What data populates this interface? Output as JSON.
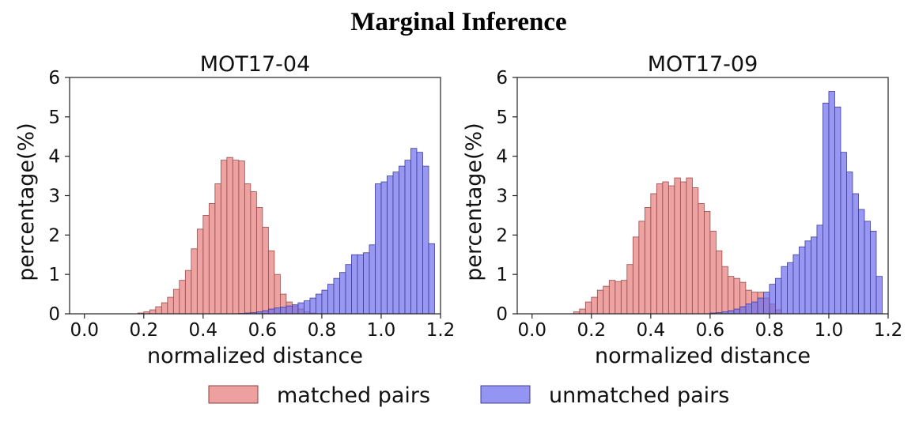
{
  "figure_title": "Marginal Inference",
  "chart_data": [
    {
      "type": "bar",
      "title": "MOT17-04",
      "xlabel": "normalized distance",
      "ylabel": "percentage(%)",
      "xlim": [
        -0.05,
        1.2
      ],
      "ylim": [
        0,
        6
      ],
      "xticks": [
        "0.0",
        "0.2",
        "0.4",
        "0.6",
        "0.8",
        "1.0",
        "1.2"
      ],
      "yticks": [
        "0",
        "1",
        "2",
        "3",
        "4",
        "5",
        "6"
      ],
      "bin_width": 0.02,
      "series": [
        {
          "name": "matched pairs",
          "color": "#e88080",
          "x": [
            0.19,
            0.21,
            0.23,
            0.25,
            0.27,
            0.29,
            0.31,
            0.33,
            0.35,
            0.37,
            0.39,
            0.41,
            0.43,
            0.45,
            0.47,
            0.49,
            0.51,
            0.53,
            0.55,
            0.57,
            0.59,
            0.61,
            0.63,
            0.65,
            0.67,
            0.69,
            0.71,
            0.73,
            0.75,
            0.77
          ],
          "values": [
            0.02,
            0.05,
            0.1,
            0.18,
            0.28,
            0.42,
            0.62,
            0.85,
            1.1,
            1.65,
            2.15,
            2.5,
            2.8,
            3.3,
            3.9,
            3.97,
            3.9,
            3.88,
            3.3,
            3.1,
            2.7,
            2.2,
            1.6,
            1.0,
            0.5,
            0.3,
            0.2,
            0.12,
            0.05,
            0.02
          ]
        },
        {
          "name": "unmatched pairs",
          "color": "#7070ee",
          "x": [
            0.53,
            0.55,
            0.57,
            0.59,
            0.61,
            0.63,
            0.65,
            0.67,
            0.69,
            0.71,
            0.73,
            0.75,
            0.77,
            0.79,
            0.81,
            0.83,
            0.85,
            0.87,
            0.89,
            0.91,
            0.93,
            0.95,
            0.97,
            0.99,
            1.01,
            1.03,
            1.05,
            1.07,
            1.09,
            1.11,
            1.13,
            1.15,
            1.17
          ],
          "values": [
            0.01,
            0.02,
            0.03,
            0.05,
            0.08,
            0.12,
            0.15,
            0.17,
            0.2,
            0.23,
            0.28,
            0.33,
            0.4,
            0.5,
            0.6,
            0.75,
            0.9,
            1.05,
            1.25,
            1.5,
            1.5,
            1.55,
            1.75,
            3.3,
            3.35,
            3.5,
            3.6,
            3.75,
            3.9,
            4.2,
            4.1,
            3.75,
            1.78
          ]
        }
      ]
    },
    {
      "type": "bar",
      "title": "MOT17-09",
      "xlabel": "normalized distance",
      "ylabel": "percentage(%)",
      "xlim": [
        -0.05,
        1.2
      ],
      "ylim": [
        0,
        6
      ],
      "xticks": [
        "0.0",
        "0.2",
        "0.4",
        "0.6",
        "0.8",
        "1.0",
        "1.2"
      ],
      "yticks": [
        "0",
        "1",
        "2",
        "3",
        "4",
        "5",
        "6"
      ],
      "bin_width": 0.02,
      "series": [
        {
          "name": "matched pairs",
          "color": "#e88080",
          "x": [
            0.15,
            0.17,
            0.19,
            0.21,
            0.23,
            0.25,
            0.27,
            0.29,
            0.31,
            0.33,
            0.35,
            0.37,
            0.39,
            0.41,
            0.43,
            0.45,
            0.47,
            0.49,
            0.51,
            0.53,
            0.55,
            0.57,
            0.59,
            0.61,
            0.63,
            0.65,
            0.67,
            0.69,
            0.71,
            0.73,
            0.75,
            0.77,
            0.79,
            0.81,
            0.83
          ],
          "values": [
            0.05,
            0.12,
            0.3,
            0.42,
            0.6,
            0.7,
            0.85,
            0.82,
            0.85,
            1.25,
            1.95,
            2.35,
            2.7,
            3.05,
            3.3,
            3.35,
            3.25,
            3.45,
            3.35,
            3.45,
            3.2,
            2.8,
            2.6,
            2.1,
            1.6,
            1.2,
            0.95,
            0.9,
            0.8,
            0.6,
            0.55,
            0.55,
            0.4,
            0.25,
            0.1
          ]
        },
        {
          "name": "unmatched pairs",
          "color": "#7070ee",
          "x": [
            0.61,
            0.63,
            0.65,
            0.67,
            0.69,
            0.71,
            0.73,
            0.75,
            0.77,
            0.79,
            0.81,
            0.83,
            0.85,
            0.87,
            0.89,
            0.91,
            0.93,
            0.95,
            0.97,
            0.99,
            1.01,
            1.03,
            1.05,
            1.07,
            1.09,
            1.11,
            1.13,
            1.15,
            1.17
          ],
          "values": [
            0.02,
            0.03,
            0.05,
            0.08,
            0.12,
            0.18,
            0.25,
            0.3,
            0.4,
            0.55,
            0.75,
            0.9,
            1.2,
            1.3,
            1.5,
            1.7,
            1.85,
            1.95,
            2.25,
            5.35,
            5.65,
            5.25,
            4.1,
            3.6,
            3.05,
            2.65,
            2.35,
            2.1,
            0.95
          ]
        }
      ]
    }
  ],
  "legend": [
    {
      "label": "matched pairs",
      "color": "#e88080"
    },
    {
      "label": "unmatched pairs",
      "color": "#7070ee"
    }
  ],
  "legend_position": "bottom-center"
}
